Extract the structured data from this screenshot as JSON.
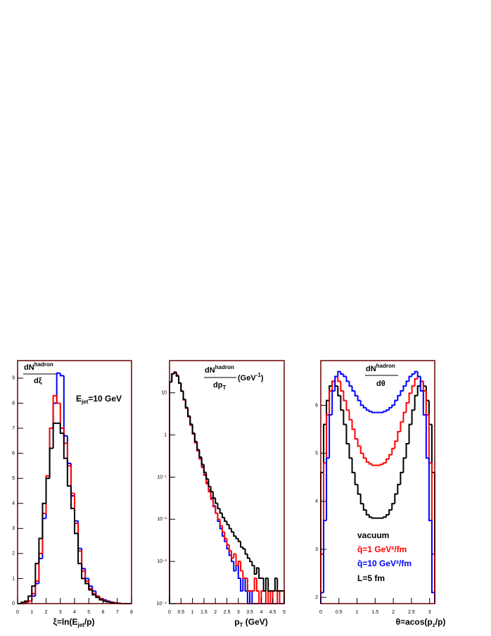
{
  "chart_data": [
    {
      "type": "histogram",
      "log": false,
      "ylabel": {
        "num": [
          "dN",
          "hadron"
        ],
        "den": [
          "dξ"
        ]
      },
      "annotation": [
        "E",
        "jet",
        "=10 GeV"
      ],
      "xlabel": [
        "ξ=ln(E",
        "jet",
        "/p)"
      ],
      "xlim": [
        0,
        8
      ],
      "ylim": [
        0,
        9.7
      ],
      "xticks": [
        0,
        1,
        2,
        3,
        4,
        5,
        6,
        7,
        8
      ],
      "yticks": [
        0,
        1,
        2,
        3,
        4,
        5,
        6,
        7,
        8,
        9
      ],
      "bins": [
        0,
        0.25,
        0.5,
        0.75,
        1,
        1.25,
        1.5,
        1.75,
        2,
        2.25,
        2.5,
        2.75,
        3,
        3.25,
        3.5,
        3.75,
        4,
        4.25,
        4.5,
        4.75,
        5,
        5.25,
        5.5,
        5.75,
        6,
        6.25,
        6.5,
        6.75,
        7,
        7.25,
        7.5,
        7.75,
        8
      ],
      "series": [
        {
          "color": "#0000ff",
          "values": [
            0,
            0,
            0.05,
            0.1,
            0.3,
            0.8,
            1.8,
            3.4,
            5.0,
            7.0,
            8.0,
            9.2,
            9.1,
            6.7,
            5.6,
            4.3,
            3.3,
            2.2,
            1.4,
            1.0,
            0.7,
            0.5,
            0.3,
            0.2,
            0.15,
            0.1,
            0.06,
            0.03,
            0.01,
            0,
            0,
            0
          ]
        },
        {
          "color": "#ff0000",
          "values": [
            0,
            0,
            0.05,
            0.1,
            0.4,
            0.9,
            2.0,
            3.6,
            5.1,
            7.0,
            8.3,
            8.0,
            7.0,
            6.4,
            5.5,
            4.4,
            3.2,
            2.1,
            1.3,
            0.9,
            0.6,
            0.4,
            0.3,
            0.2,
            0.12,
            0.08,
            0.05,
            0.03,
            0.01,
            0,
            0,
            0
          ]
        },
        {
          "color": "#000000",
          "values": [
            0,
            0.05,
            0.1,
            0.3,
            0.7,
            1.6,
            2.6,
            4.0,
            5.0,
            6.2,
            7.2,
            7.2,
            6.8,
            5.8,
            4.7,
            3.8,
            2.8,
            1.6,
            1.0,
            0.8,
            0.55,
            0.35,
            0.25,
            0.15,
            0.1,
            0.07,
            0.04,
            0.02,
            0.01,
            0,
            0,
            0
          ]
        }
      ]
    },
    {
      "type": "histogram",
      "log": true,
      "ylabel": {
        "num": [
          "dN",
          "hadron"
        ],
        "den": [
          "dp",
          "T"
        ],
        "unit": [
          "(GeV",
          "-1",
          ")"
        ]
      },
      "xlabel": [
        "p",
        "T",
        " (GeV)"
      ],
      "xlim": [
        0,
        5
      ],
      "ylim": [
        0.0001,
        58
      ],
      "xticks": [
        0,
        0.5,
        1,
        1.5,
        2,
        2.5,
        3,
        3.5,
        4,
        4.5,
        5
      ],
      "yticks": [
        10,
        1,
        {
          "value": 0.1,
          "label": "10⁻¹"
        },
        {
          "value": 0.01,
          "label": "10⁻²"
        },
        {
          "value": 0.001,
          "label": "10⁻³"
        },
        {
          "value": 0.0001,
          "label": "10⁻⁴"
        }
      ],
      "bins": [
        0,
        0.1,
        0.2,
        0.3,
        0.4,
        0.5,
        0.6,
        0.7,
        0.8,
        0.9,
        1,
        1.1,
        1.2,
        1.3,
        1.4,
        1.5,
        1.6,
        1.7,
        1.8,
        1.9,
        2,
        2.1,
        2.2,
        2.3,
        2.4,
        2.5,
        2.6,
        2.7,
        2.8,
        2.9,
        3,
        3.1,
        3.2,
        3.3,
        3.4,
        3.5,
        3.6,
        3.7,
        3.8,
        3.9,
        4,
        4.1,
        4.2,
        4.3,
        4.4,
        4.5,
        4.6,
        4.7,
        4.8,
        4.9,
        5
      ],
      "series": [
        {
          "color": "#0000ff",
          "values": [
            18,
            28,
            31,
            26,
            17,
            11,
            6.9,
            4.4,
            2.8,
            1.75,
            1.1,
            0.68,
            0.44,
            0.28,
            0.18,
            0.115,
            0.075,
            0.05,
            0.032,
            0.021,
            0.014,
            0.009,
            0.006,
            0.004,
            0.003,
            0.002,
            0.0014,
            0.001,
            0.0006,
            0.0008,
            0.0004,
            0.0002,
            0.0004,
            0.0002,
            0,
            0.0002,
            0,
            0,
            0,
            0,
            0,
            0,
            0,
            0,
            0,
            0,
            0,
            0,
            0,
            0
          ]
        },
        {
          "color": "#ff0000",
          "values": [
            18,
            28,
            31,
            26,
            17,
            11,
            6.8,
            4.3,
            2.7,
            1.7,
            1.05,
            0.65,
            0.42,
            0.27,
            0.17,
            0.11,
            0.07,
            0.045,
            0.03,
            0.02,
            0.014,
            0.01,
            0.007,
            0.005,
            0.0035,
            0.0025,
            0.0018,
            0.0012,
            0.0015,
            0.0008,
            0.001,
            0.0006,
            0.0004,
            0.0004,
            0.0002,
            0.0002,
            0.0002,
            0.0004,
            0.0002,
            0,
            0.0002,
            0.0002,
            0,
            0.0002,
            0,
            0.0002,
            0.0002,
            0,
            0.0002,
            0.0002
          ]
        },
        {
          "color": "#000000",
          "values": [
            18,
            28,
            30,
            25,
            17,
            11,
            7,
            4.5,
            2.8,
            1.8,
            1.1,
            0.7,
            0.45,
            0.3,
            0.2,
            0.13,
            0.09,
            0.06,
            0.045,
            0.032,
            0.024,
            0.018,
            0.014,
            0.011,
            0.009,
            0.0075,
            0.006,
            0.005,
            0.004,
            0.0035,
            0.003,
            0.0022,
            0.002,
            0.0015,
            0.0012,
            0.001,
            0.0008,
            0.0005,
            0.0007,
            0.0004,
            0.0004,
            0.0002,
            0.0004,
            0.0002,
            0.0002,
            0.0002,
            0.0004,
            0.0002,
            0.0002,
            0.0002
          ]
        }
      ]
    },
    {
      "type": "histogram",
      "log": false,
      "ylabel": {
        "num": [
          "dN",
          "hadron"
        ],
        "den": [
          "dθ"
        ]
      },
      "xlabel": [
        "θ=acos(p",
        "z",
        "/p)"
      ],
      "note": "L=5 fm",
      "xlim": [
        0,
        3.1416
      ],
      "ylim": [
        1.87,
        6.93
      ],
      "xticks": [
        0,
        0.5,
        1,
        1.5,
        2,
        2.5,
        3
      ],
      "yticks": [
        2,
        3,
        4,
        5,
        6
      ],
      "bins": [
        0,
        0.0785,
        0.1571,
        0.2356,
        0.3142,
        0.3927,
        0.4712,
        0.5498,
        0.6283,
        0.7069,
        0.7854,
        0.8639,
        0.9425,
        1.021,
        1.0996,
        1.1781,
        1.2566,
        1.3352,
        1.4137,
        1.4923,
        1.5708,
        1.6493,
        1.7279,
        1.8064,
        1.885,
        1.9635,
        2.042,
        2.1206,
        2.1991,
        2.2777,
        2.3562,
        2.4347,
        2.5133,
        2.5918,
        2.6704,
        2.7489,
        2.8274,
        2.906,
        2.9845,
        3.0631,
        3.1416
      ],
      "series": [
        {
          "name": "vacuum",
          "color": "#000000",
          "values": [
            4.6,
            5.6,
            6.1,
            6.4,
            6.5,
            6.4,
            6.2,
            5.9,
            5.6,
            5.2,
            4.9,
            4.6,
            4.35,
            4.15,
            3.95,
            3.82,
            3.72,
            3.67,
            3.65,
            3.65,
            3.65,
            3.65,
            3.67,
            3.72,
            3.82,
            3.95,
            4.15,
            4.35,
            4.6,
            4.9,
            5.2,
            5.6,
            5.9,
            6.2,
            6.4,
            6.5,
            6.4,
            6.1,
            5.6,
            4.6
          ]
        },
        {
          "name": "q̂=1 GeV²/fm",
          "color": "#ff0000",
          "values": [
            2.9,
            4.8,
            5.8,
            6.3,
            6.5,
            6.6,
            6.5,
            6.3,
            6.1,
            5.9,
            5.7,
            5.5,
            5.3,
            5.15,
            5.0,
            4.9,
            4.82,
            4.78,
            4.75,
            4.75,
            4.75,
            4.77,
            4.8,
            4.88,
            4.97,
            5.1,
            5.25,
            5.45,
            5.65,
            5.85,
            6.05,
            6.25,
            6.4,
            6.55,
            6.6,
            6.5,
            6.3,
            5.8,
            4.8,
            2.9
          ]
        },
        {
          "name": "q̂=10 GeV²/fm",
          "color": "#0000ff",
          "values": [
            2.1,
            3.6,
            4.9,
            5.8,
            6.3,
            6.6,
            6.7,
            6.65,
            6.6,
            6.5,
            6.4,
            6.3,
            6.2,
            6.1,
            6.0,
            5.95,
            5.9,
            5.87,
            5.85,
            5.85,
            5.85,
            5.85,
            5.87,
            5.9,
            5.95,
            6.0,
            6.1,
            6.2,
            6.3,
            6.4,
            6.5,
            6.6,
            6.65,
            6.7,
            6.6,
            6.3,
            5.8,
            4.9,
            3.6,
            2.1
          ]
        }
      ]
    }
  ]
}
